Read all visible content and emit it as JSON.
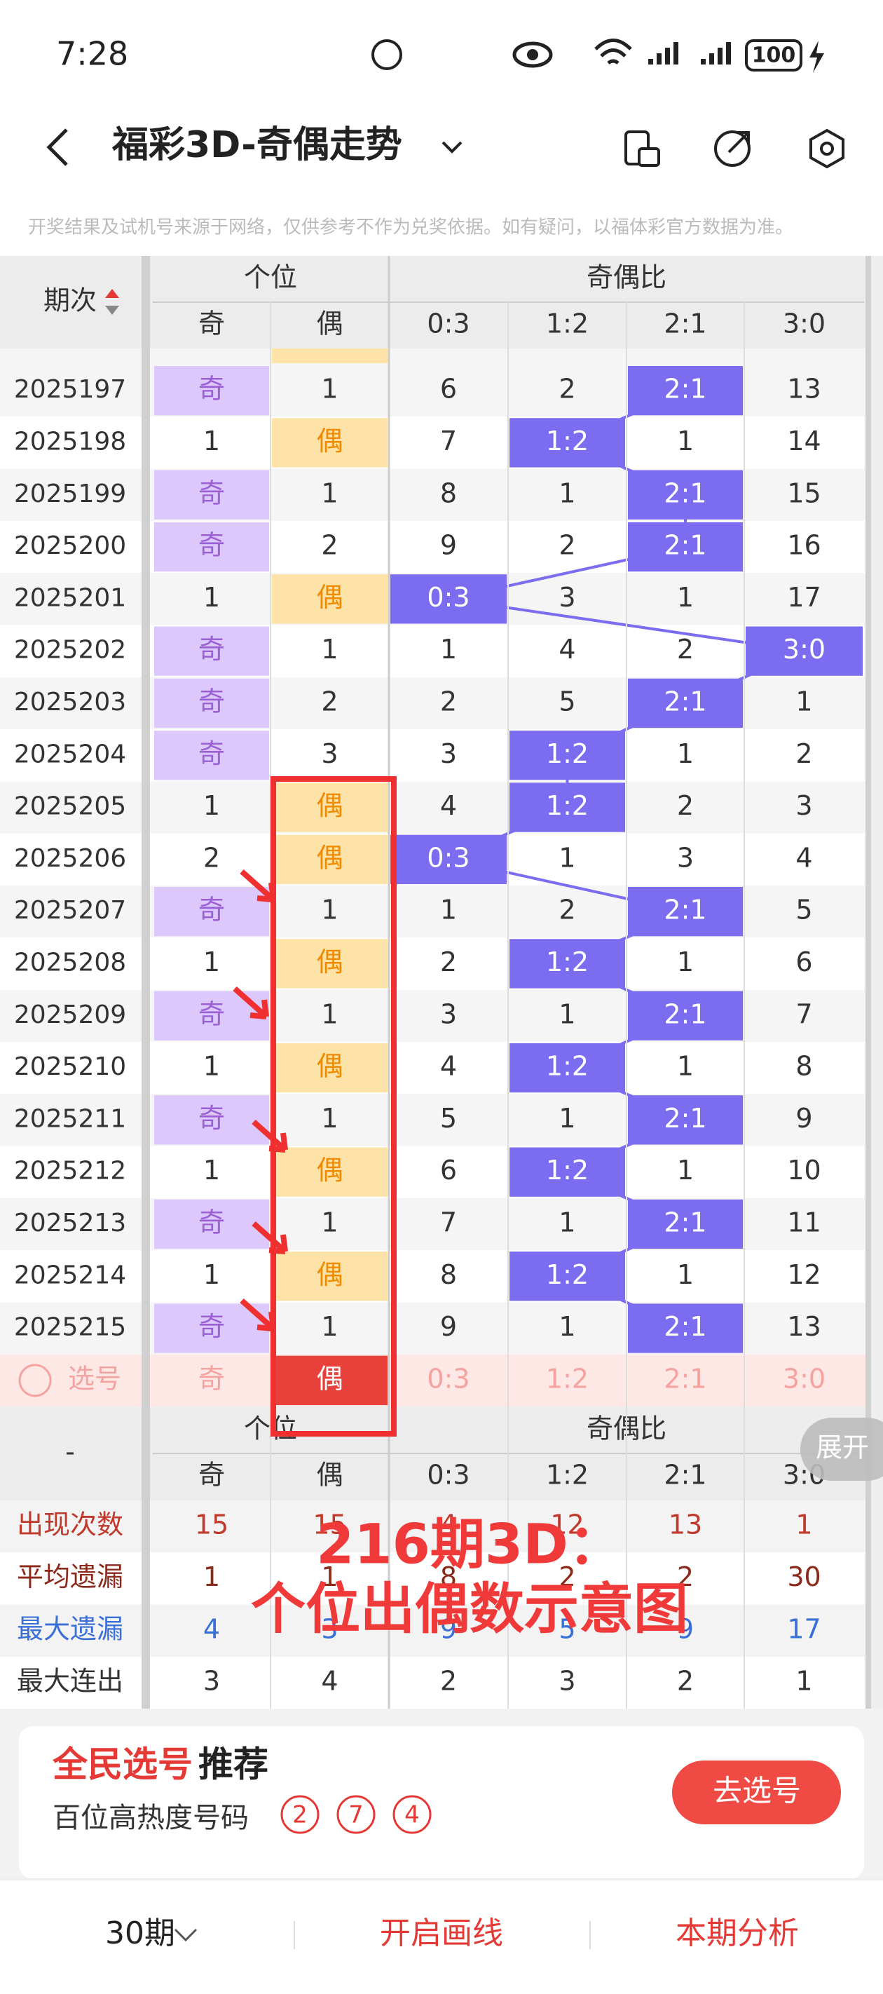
{
  "status": {
    "time": "7:28",
    "battery": "100"
  },
  "header": {
    "title": "福彩3D-奇偶走势"
  },
  "notice": "开奖结果及试机号来源于网络，仅供参考不作为兑奖依据。如有疑问，以福体彩官方数据为准。",
  "table": {
    "period_header": "期次",
    "group1": "个位",
    "group2": "奇偶比",
    "sub": [
      "奇",
      "偶",
      "0:3",
      "1:2",
      "2:1",
      "3:0"
    ],
    "rows": [
      {
        "period": "2025197",
        "cells": [
          "奇",
          1,
          6,
          2,
          "2:1",
          13
        ]
      },
      {
        "period": "2025198",
        "cells": [
          1,
          "偶",
          7,
          "1:2",
          1,
          14
        ]
      },
      {
        "period": "2025199",
        "cells": [
          "奇",
          1,
          8,
          1,
          "2:1",
          15
        ]
      },
      {
        "period": "2025200",
        "cells": [
          "奇",
          2,
          9,
          2,
          "2:1",
          16
        ]
      },
      {
        "period": "2025201",
        "cells": [
          1,
          "偶",
          "0:3",
          3,
          1,
          17
        ]
      },
      {
        "period": "2025202",
        "cells": [
          "奇",
          1,
          1,
          4,
          2,
          "3:0"
        ]
      },
      {
        "period": "2025203",
        "cells": [
          "奇",
          2,
          2,
          5,
          "2:1",
          1
        ]
      },
      {
        "period": "2025204",
        "cells": [
          "奇",
          3,
          3,
          "1:2",
          1,
          2
        ]
      },
      {
        "period": "2025205",
        "cells": [
          1,
          "偶",
          4,
          "1:2",
          2,
          3
        ]
      },
      {
        "period": "2025206",
        "cells": [
          2,
          "偶",
          "0:3",
          1,
          3,
          4
        ]
      },
      {
        "period": "2025207",
        "cells": [
          "奇",
          1,
          1,
          2,
          "2:1",
          5
        ]
      },
      {
        "period": "2025208",
        "cells": [
          1,
          "偶",
          2,
          "1:2",
          1,
          6
        ]
      },
      {
        "period": "2025209",
        "cells": [
          "奇",
          1,
          3,
          1,
          "2:1",
          7
        ]
      },
      {
        "period": "2025210",
        "cells": [
          1,
          "偶",
          4,
          "1:2",
          1,
          8
        ]
      },
      {
        "period": "2025211",
        "cells": [
          "奇",
          1,
          5,
          1,
          "2:1",
          9
        ]
      },
      {
        "period": "2025212",
        "cells": [
          1,
          "偶",
          6,
          "1:2",
          1,
          10
        ]
      },
      {
        "period": "2025213",
        "cells": [
          "奇",
          1,
          7,
          1,
          "2:1",
          11
        ]
      },
      {
        "period": "2025214",
        "cells": [
          1,
          "偶",
          8,
          "1:2",
          1,
          12
        ]
      },
      {
        "period": "2025215",
        "cells": [
          "奇",
          1,
          9,
          1,
          "2:1",
          13
        ]
      }
    ],
    "select_row": {
      "label": "选号",
      "cells": [
        "奇",
        "偶",
        "0:3",
        "1:2",
        "2:1",
        "3:0"
      ]
    }
  },
  "footer": {
    "label": "-",
    "group1": "个位",
    "group2": "奇偶比",
    "sub": [
      "奇",
      "偶",
      "0:3",
      "1:2",
      "2:1",
      "3:0"
    ],
    "stats": [
      {
        "label": "出现次数",
        "values": [
          15,
          15,
          4,
          12,
          13,
          1
        ]
      },
      {
        "label": "平均遗漏",
        "values": [
          1,
          1,
          8,
          2,
          2,
          30
        ]
      },
      {
        "label": "最大遗漏",
        "values": [
          4,
          3,
          9,
          5,
          9,
          17
        ]
      },
      {
        "label": "最大连出",
        "values": [
          3,
          4,
          2,
          3,
          2,
          1
        ]
      }
    ]
  },
  "overlay": {
    "line1": "216期3D：",
    "line2": "个位出偶数示意图"
  },
  "expand": "展开",
  "promo": {
    "title_red": "全民选号",
    "title_rest": "推荐",
    "subtitle": "百位高热度号码",
    "balls": [
      2,
      7,
      4
    ],
    "button": "去选号"
  },
  "nav": [
    "30期",
    "开启画线",
    "本期分析"
  ]
}
